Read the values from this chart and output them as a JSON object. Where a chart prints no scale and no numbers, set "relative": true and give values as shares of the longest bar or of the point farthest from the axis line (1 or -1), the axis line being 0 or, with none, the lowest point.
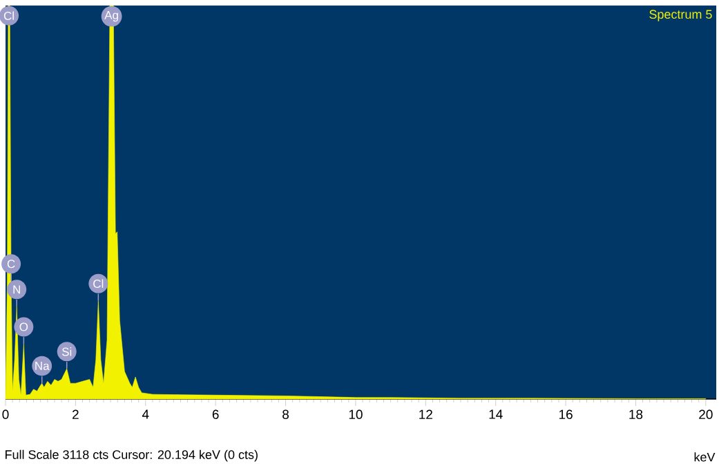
{
  "chart_data": {
    "type": "area",
    "title": "Spectrum 5",
    "xlabel": "keV",
    "relative": true,
    "x": [
      0,
      0.05,
      0.08,
      0.12,
      0.16,
      0.2,
      0.26,
      0.32,
      0.38,
      0.44,
      0.52,
      0.58,
      0.7,
      0.8,
      0.9,
      1.0,
      1.04,
      1.1,
      1.2,
      1.3,
      1.4,
      1.5,
      1.6,
      1.75,
      1.85,
      2.0,
      2.2,
      2.4,
      2.5,
      2.58,
      2.65,
      2.72,
      2.8,
      2.9,
      2.98,
      3.08,
      3.14,
      3.19,
      3.26,
      3.33,
      3.4,
      3.47,
      3.55,
      3.62,
      3.71,
      3.8,
      3.89,
      4.2,
      5,
      6,
      7,
      8,
      9,
      10,
      11,
      12,
      13,
      15,
      18,
      20
    ],
    "values": [
      0,
      0.3,
      1.0,
      1.0,
      0.3,
      0.02,
      0.1,
      0.235,
      0.05,
      0.01,
      0.14,
      0.01,
      0.012,
      0.025,
      0.02,
      0.035,
      0.04,
      0.03,
      0.045,
      0.035,
      0.05,
      0.045,
      0.05,
      0.077,
      0.04,
      0.04,
      0.045,
      0.05,
      0.03,
      0.1,
      0.25,
      0.1,
      0.04,
      0.15,
      1.0,
      1.0,
      0.42,
      0.425,
      0.2,
      0.135,
      0.07,
      0.056,
      0.04,
      0.03,
      0.056,
      0.03,
      0.016,
      0.012,
      0.011,
      0.01,
      0.009,
      0.008,
      0.006,
      0.004,
      0.004,
      0.003,
      0.002,
      0.002,
      0.001,
      0.001
    ],
    "color": "#f2f200",
    "xlim": [
      0,
      20.3
    ],
    "xticks": [
      0,
      2,
      4,
      6,
      8,
      10,
      12,
      14,
      16,
      18,
      20
    ],
    "grid": false,
    "annotations": [
      {
        "text": "Cl",
        "x": 0.1,
        "y": 1.0
      },
      {
        "text": "Ag",
        "x": 3.03,
        "y": 1.0
      },
      {
        "text": "C",
        "x": 0.16,
        "y": 0.3
      },
      {
        "text": "N",
        "x": 0.32,
        "y": 0.235
      },
      {
        "text": "O",
        "x": 0.52,
        "y": 0.14
      },
      {
        "text": "Na",
        "x": 1.04,
        "y": 0.04
      },
      {
        "text": "Si",
        "x": 1.75,
        "y": 0.077
      },
      {
        "text": "Cl",
        "x": 2.65,
        "y": 0.25
      },
      "Full Scale 3118 cts  Cursor: 20.194 keV (0 cts)"
    ]
  }
}
